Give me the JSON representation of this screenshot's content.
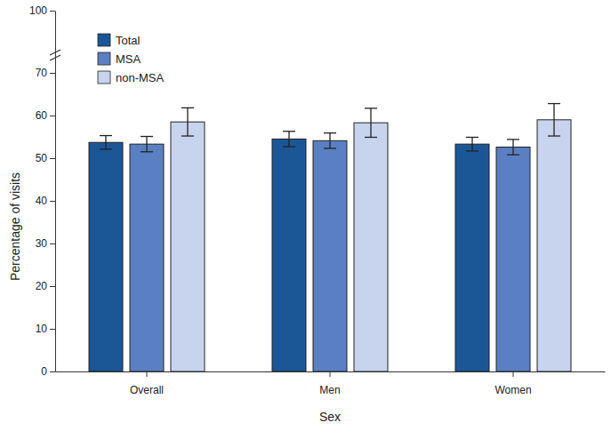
{
  "chart_data": {
    "type": "bar",
    "x_label": "Sex",
    "y_label": "Percentage of visits",
    "categories": [
      "Overall",
      "Men",
      "Women"
    ],
    "series": [
      {
        "name": "Total",
        "color": "#1b5796",
        "values": [
          53.7,
          54.5,
          53.3
        ],
        "errors": [
          1.6,
          1.8,
          1.6
        ]
      },
      {
        "name": "MSA",
        "color": "#5a80c3",
        "values": [
          53.3,
          54.1,
          52.6
        ],
        "errors": [
          1.8,
          1.8,
          1.8
        ]
      },
      {
        "name": "non-MSA",
        "color": "#c8d4ee",
        "values": [
          58.5,
          58.3,
          59.0
        ],
        "errors": [
          3.3,
          3.4,
          3.8
        ]
      }
    ],
    "ylim": [
      0,
      100
    ],
    "yticks": [
      0,
      10,
      20,
      30,
      40,
      50,
      60,
      70,
      100
    ],
    "grid": false,
    "legend": "top-left"
  }
}
